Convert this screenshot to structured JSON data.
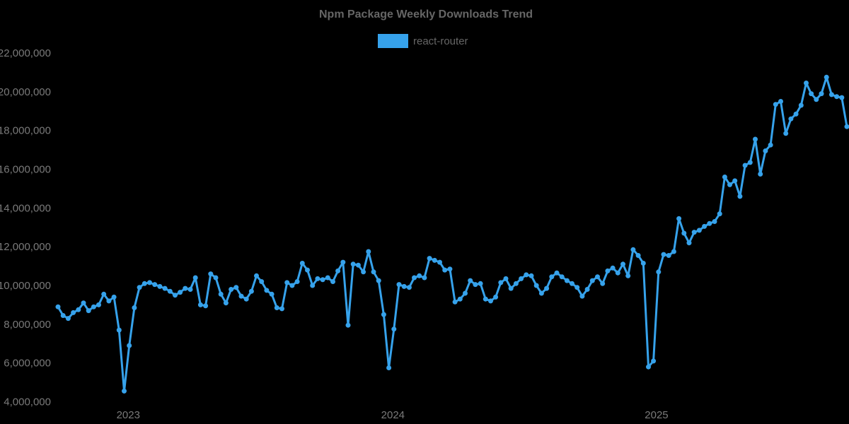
{
  "chart": {
    "title": "Npm Package Weekly Downloads Trend",
    "legend": [
      {
        "label": "react-router",
        "color": "#36A2EB"
      }
    ]
  },
  "chart_data": {
    "type": "line",
    "title": "Npm Package Weekly Downloads Trend",
    "x_unit": "week",
    "grid": false,
    "legend_position": "top",
    "background_color": "#000000",
    "title_color": "#666666",
    "tick_color": "#7a7a7a",
    "point_style": "circle",
    "ylim": [
      4000000,
      22000000
    ],
    "y_ticks": [
      {
        "value": 4000000,
        "label": "4,000,000"
      },
      {
        "value": 6000000,
        "label": "6,000,000"
      },
      {
        "value": 8000000,
        "label": "8,000,000"
      },
      {
        "value": 10000000,
        "label": "10,000,000"
      },
      {
        "value": 12000000,
        "label": "12,000,000"
      },
      {
        "value": 14000000,
        "label": "14,000,000"
      },
      {
        "value": 16000000,
        "label": "16,000,000"
      },
      {
        "value": 18000000,
        "label": "18,000,000"
      },
      {
        "value": 20000000,
        "label": "20,000,000"
      },
      {
        "value": 22000000,
        "label": "22,000,000"
      }
    ],
    "x_ticks": [
      {
        "label": "2023",
        "week": 13.8
      },
      {
        "label": "2024",
        "week": 65.8
      },
      {
        "label": "2025",
        "week": 117.6
      }
    ],
    "series": [
      {
        "name": "react-router",
        "color": "#36A2EB",
        "values": [
          8900000,
          8450000,
          8300000,
          8600000,
          8750000,
          9100000,
          8700000,
          8900000,
          9000000,
          9550000,
          9200000,
          9400000,
          7700000,
          4550000,
          6900000,
          8850000,
          9900000,
          10100000,
          10150000,
          10050000,
          9950000,
          9850000,
          9700000,
          9500000,
          9650000,
          9850000,
          9800000,
          10400000,
          9000000,
          8950000,
          10600000,
          10400000,
          9550000,
          9100000,
          9800000,
          9900000,
          9450000,
          9300000,
          9700000,
          10500000,
          10200000,
          9750000,
          9550000,
          8850000,
          8800000,
          10150000,
          10000000,
          10200000,
          11150000,
          10800000,
          10000000,
          10350000,
          10300000,
          10400000,
          10200000,
          10750000,
          11200000,
          7950000,
          11100000,
          11050000,
          10700000,
          11750000,
          10700000,
          10250000,
          8500000,
          5750000,
          7750000,
          10050000,
          9950000,
          9900000,
          10400000,
          10500000,
          10400000,
          11400000,
          11300000,
          11200000,
          10800000,
          10850000,
          9150000,
          9300000,
          9600000,
          10250000,
          10050000,
          10100000,
          9300000,
          9200000,
          9400000,
          10150000,
          10350000,
          9850000,
          10100000,
          10350000,
          10550000,
          10500000,
          10000000,
          9600000,
          9850000,
          10450000,
          10650000,
          10450000,
          10250000,
          10100000,
          9900000,
          9450000,
          9800000,
          10250000,
          10450000,
          10100000,
          10750000,
          10900000,
          10650000,
          11100000,
          10500000,
          11850000,
          11550000,
          11150000,
          5800000,
          6100000,
          10700000,
          11600000,
          11550000,
          11750000,
          13450000,
          12700000,
          12200000,
          12750000,
          12850000,
          13050000,
          13200000,
          13300000,
          13700000,
          15600000,
          15200000,
          15400000,
          14600000,
          16200000,
          16350000,
          17550000,
          15750000,
          16950000,
          17250000,
          19350000,
          19500000,
          17850000,
          18600000,
          18850000,
          19300000,
          20450000,
          19900000,
          19600000,
          19900000,
          20750000,
          19850000,
          19750000,
          19700000,
          18200000
        ]
      }
    ]
  }
}
